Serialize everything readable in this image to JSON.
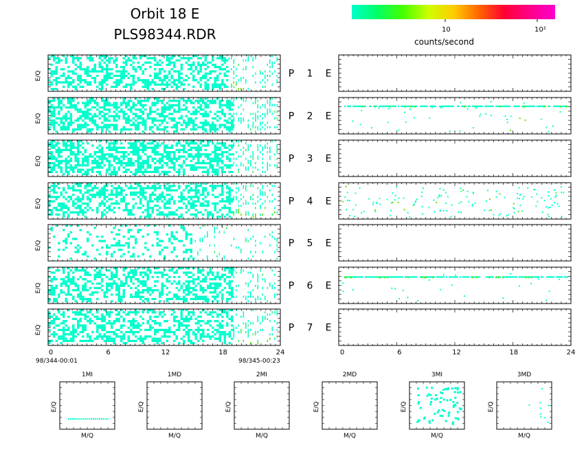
{
  "header": {
    "title": "Orbit 18 E",
    "subtitle": "PLS98344.RDR"
  },
  "colorbar": {
    "colors": [
      "#00ffcc",
      "#00ff66",
      "#44ff00",
      "#ccff00",
      "#ffcc00",
      "#ff6600",
      "#ff0033",
      "#ff0088",
      "#ff00cc"
    ],
    "tick_labels": [
      "10",
      "10²"
    ],
    "title": "counts/second"
  },
  "chart_data": {
    "type": "heatmap",
    "ylabel": "E/Q",
    "x_ticks": [
      "0",
      "6",
      "12",
      "18",
      "24"
    ],
    "xlim": [
      0,
      24
    ],
    "start_time": "98/344-00:01",
    "end_time": "98/345-00:23",
    "grid": false,
    "panels": [
      {
        "label_p": "P",
        "label_n": "1",
        "label_e": "E",
        "left": {
          "density": 0.45,
          "fade_start": 18.5,
          "has_green_bottom": true
        },
        "right": {
          "band": false
        }
      },
      {
        "label_p": "P",
        "label_n": "2",
        "label_e": "E",
        "left": {
          "density": 0.55,
          "fade_start": 19,
          "has_green_bottom": false
        },
        "right": {
          "band": true,
          "band_row": 0.22,
          "scatter": 0.05
        }
      },
      {
        "label_p": "P",
        "label_n": "3",
        "label_e": "E",
        "left": {
          "density": 0.55,
          "fade_start": 19,
          "has_green_bottom": false
        },
        "right": {
          "band": false
        }
      },
      {
        "label_p": "P",
        "label_n": "4",
        "label_e": "E",
        "left": {
          "density": 0.45,
          "fade_start": 19,
          "has_green_bottom": true
        },
        "right": {
          "band": false,
          "scatter": 0.18
        }
      },
      {
        "label_p": "P",
        "label_n": "5",
        "label_e": "E",
        "left": {
          "density": 0.2,
          "fade_start": 15,
          "has_green_bottom": false
        },
        "right": {
          "band": false
        }
      },
      {
        "label_p": "P",
        "label_n": "6",
        "label_e": "E",
        "left": {
          "density": 0.45,
          "fade_start": 19,
          "has_green_bottom": false
        },
        "right": {
          "band": true,
          "band_row": 0.25,
          "scatter": 0.03
        }
      },
      {
        "label_p": "P",
        "label_n": "7",
        "label_e": "E",
        "left": {
          "density": 0.45,
          "fade_start": 19,
          "has_green_bottom": true
        },
        "right": {
          "band": false
        }
      }
    ],
    "small_panels": [
      {
        "title": "1MI",
        "xlabel": "M/Q",
        "ylabel": "E/Q",
        "pattern": "line"
      },
      {
        "title": "1MD",
        "xlabel": "M/Q",
        "ylabel": "E/Q",
        "pattern": "none"
      },
      {
        "title": "2MI",
        "xlabel": "M/Q",
        "ylabel": "E/Q",
        "pattern": "none"
      },
      {
        "title": "2MD",
        "xlabel": "M/Q",
        "ylabel": "E/Q",
        "pattern": "none"
      },
      {
        "title": "3MI",
        "xlabel": "M/Q",
        "ylabel": "E/Q",
        "pattern": "scatter"
      },
      {
        "title": "3MD",
        "xlabel": "M/Q",
        "ylabel": "E/Q",
        "pattern": "sparse"
      }
    ]
  }
}
